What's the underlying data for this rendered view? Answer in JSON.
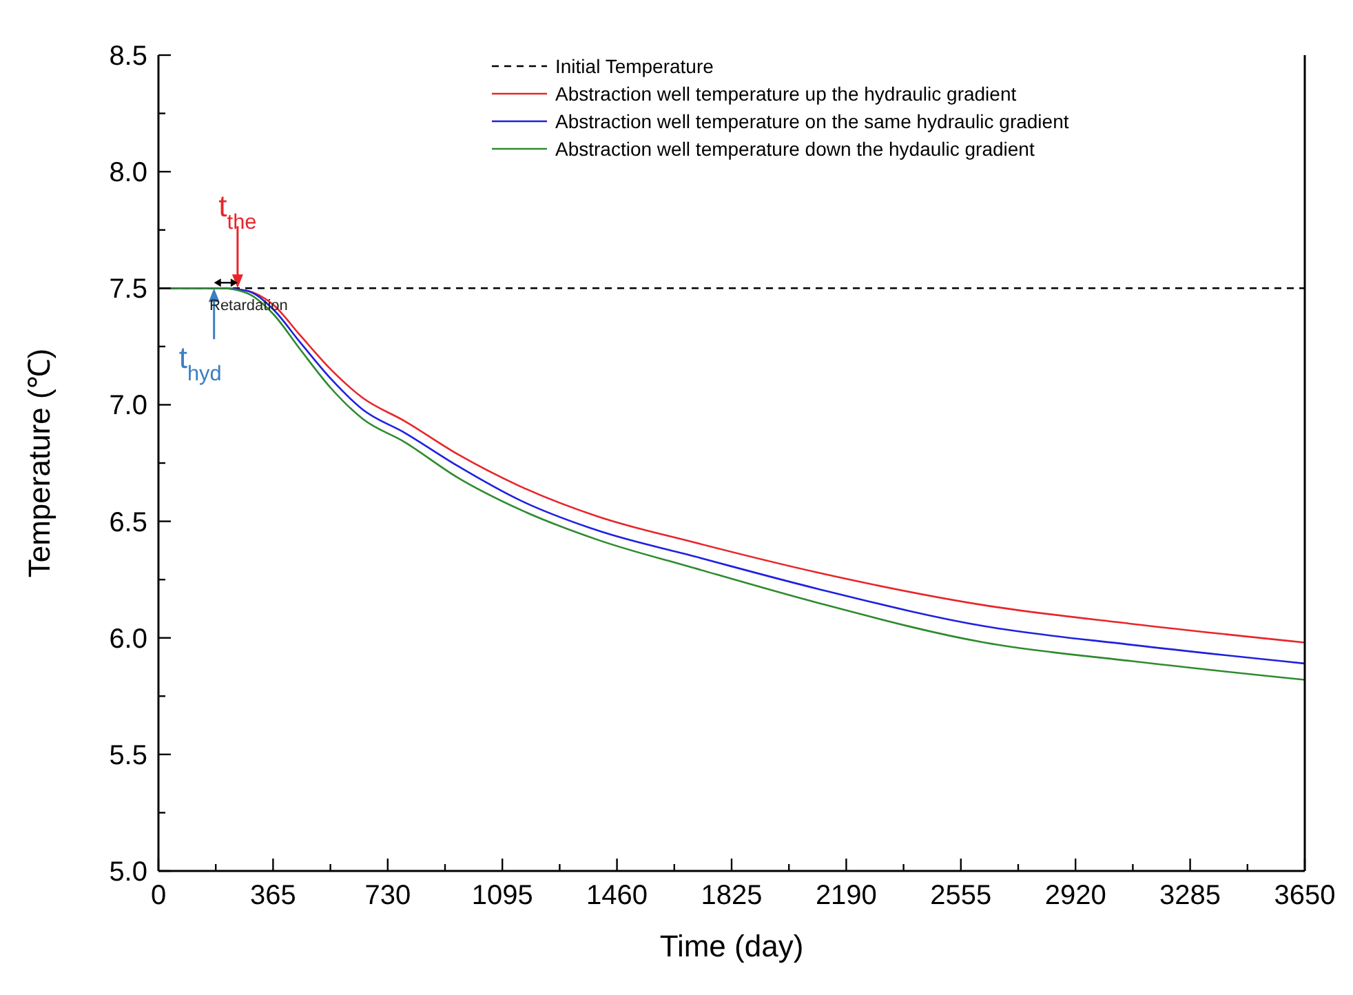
{
  "chart_data": {
    "type": "line",
    "xlabel": "Time (day)",
    "ylabel": "Temperature (℃)",
    "xlim": [
      0,
      3650
    ],
    "ylim": [
      5,
      8.5
    ],
    "xticks": [
      0,
      {
        "value": 182.5,
        "label": null
      },
      365,
      {
        "value": 547.5,
        "label": null
      },
      730,
      {
        "value": 912.5,
        "label": null
      },
      1095,
      {
        "value": 1277.5,
        "label": null
      },
      1460,
      {
        "value": 1642.5,
        "label": null
      },
      1825,
      {
        "value": 2007.5,
        "label": null
      },
      2190,
      {
        "value": 2372.5,
        "label": null
      },
      2555,
      {
        "value": 2737.5,
        "label": null
      },
      2920,
      {
        "value": 3102.5,
        "label": null
      },
      3285,
      {
        "value": 3467.5,
        "label": null
      },
      3650
    ],
    "yticks": [
      {
        "value": 5,
        "label": "5.0"
      },
      {
        "value": 5.25,
        "label": null
      },
      {
        "value": 5.5,
        "label": "5.5"
      },
      {
        "value": 5.75,
        "label": null
      },
      {
        "value": 6,
        "label": "6.0"
      },
      {
        "value": 6.25,
        "label": null
      },
      {
        "value": 6.5,
        "label": "6.5"
      },
      {
        "value": 6.75,
        "label": null
      },
      {
        "value": 7,
        "label": "7.0"
      },
      {
        "value": 7.25,
        "label": null
      },
      {
        "value": 7.5,
        "label": "7.5"
      },
      {
        "value": 7.75,
        "label": null
      },
      {
        "value": 8,
        "label": "8.0"
      },
      {
        "value": 8.25,
        "label": null
      },
      {
        "value": 8.5,
        "label": "8.5"
      }
    ],
    "grid": false,
    "legend": "top right",
    "marker": "none",
    "series": [
      {
        "name": "Initial Temperature",
        "color": "#000000",
        "line_style": "dashed",
        "x": [
          0,
          3650
        ],
        "values": [
          7.5,
          7.5
        ]
      },
      {
        "name": "Abstraction well temperature up the hydraulic gradient",
        "color": "#e8252a",
        "x": [
          0,
          200,
          280,
          365,
          450,
          550,
          650,
          784,
          950,
          1152,
          1400,
          1705,
          2100,
          2630,
          3100,
          3650
        ],
        "values": [
          7.5,
          7.5,
          7.49,
          7.43,
          7.3,
          7.15,
          7.03,
          6.93,
          6.79,
          6.65,
          6.52,
          6.41,
          6.28,
          6.14,
          6.06,
          5.98
        ]
      },
      {
        "name": "Abstraction well temperature on the same hydraulic gradient",
        "color": "#2020e0",
        "x": [
          0,
          200,
          280,
          365,
          450,
          550,
          650,
          784,
          950,
          1152,
          1400,
          1705,
          2100,
          2630,
          3100,
          3650
        ],
        "values": [
          7.5,
          7.5,
          7.49,
          7.41,
          7.27,
          7.11,
          6.98,
          6.88,
          6.74,
          6.59,
          6.46,
          6.35,
          6.21,
          6.05,
          5.97,
          5.89
        ]
      },
      {
        "name": "Abstraction well temperature down the hydaulic gradient",
        "color": "#2e8b2e",
        "x": [
          0,
          200,
          280,
          365,
          450,
          550,
          650,
          784,
          950,
          1152,
          1400,
          1705,
          2100,
          2630,
          3100,
          3650
        ],
        "values": [
          7.5,
          7.5,
          7.48,
          7.39,
          7.24,
          7.07,
          6.94,
          6.84,
          6.69,
          6.55,
          6.42,
          6.3,
          6.15,
          5.98,
          5.9,
          5.82
        ]
      }
    ],
    "annotations": [
      {
        "text": "t$_{the}$",
        "x": 252,
        "y": 7.5
      },
      {
        "text": "t$_{hyd}$",
        "x": 177,
        "y": 7.5
      },
      {
        "text": "Retardation",
        "x": 215,
        "y": 7.5
      }
    ]
  }
}
